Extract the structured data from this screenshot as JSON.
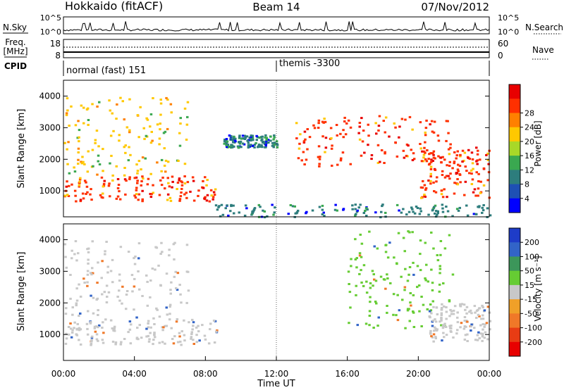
{
  "header": {
    "station": "Hokkaido (fitACF)",
    "beam": "Beam 14",
    "date": "07/Nov/2012"
  },
  "noise_panel": {
    "left_label": "N.Sky",
    "right_label": "N.Search",
    "left_ticks": [
      "10^5",
      "10^0"
    ],
    "right_ticks": [
      "10^5",
      "10^0"
    ]
  },
  "freq_panel": {
    "left_label_top": "Freq.",
    "left_label_bottom": "[MHz]",
    "left_ticks": [
      "18",
      "8"
    ],
    "right_label": "Nave",
    "right_ticks": [
      "60",
      "0"
    ]
  },
  "cpid_panel": {
    "label": "CPID",
    "modes": [
      {
        "text": "normal (fast) 151",
        "start_hour": 0
      },
      {
        "text": "themis -3300",
        "start_hour": 12
      }
    ]
  },
  "time_axis": {
    "label": "Time UT",
    "ticks": [
      "00:00",
      "04:00",
      "08:00",
      "12:00",
      "16:00",
      "20:00",
      "00:00"
    ],
    "hours": [
      0,
      4,
      8,
      12,
      16,
      20,
      24
    ],
    "range_hours": [
      0,
      24
    ]
  },
  "chart_data": [
    {
      "type": "heatmap",
      "quantity": "power",
      "ylabel": "Slant Range [km]",
      "ylim": [
        180,
        4500
      ],
      "yticks": [
        1000,
        2000,
        3000,
        4000
      ],
      "xlim_hours": [
        0,
        24
      ],
      "colorbar": {
        "label": "Power [dB]",
        "ticks": [
          "4",
          "8",
          "12",
          "16",
          "20",
          "24",
          "28"
        ],
        "colors": [
          "#0000ff",
          "#1e50b4",
          "#2d7d7d",
          "#3aa850",
          "#a8d828",
          "#ffc800",
          "#ff8000",
          "#ff3000",
          "#e80000"
        ]
      },
      "features": [
        {
          "desc": "dense echo band",
          "hours": [
            0,
            8.6
          ],
          "range_km": [
            700,
            1500
          ],
          "power_db": 26
        },
        {
          "desc": "diffuse echo region",
          "hours": [
            0,
            7
          ],
          "range_km": [
            1500,
            4000
          ],
          "power_db": 18
        },
        {
          "desc": "scattered echoes",
          "hours": [
            9,
            12
          ],
          "range_km": [
            2400,
            2800
          ],
          "power_db": 6
        },
        {
          "desc": "near-range ground echoes",
          "hours": [
            8.5,
            24
          ],
          "range_km": [
            200,
            600
          ],
          "power_db": 8
        },
        {
          "desc": "strong descending band",
          "hours": [
            13,
            22
          ],
          "range_km": [
            1800,
            3400
          ],
          "power_db": 26
        },
        {
          "desc": "strong evening band",
          "hours": [
            20,
            24
          ],
          "range_km": [
            800,
            2400
          ],
          "power_db": 26
        }
      ]
    },
    {
      "type": "heatmap",
      "quantity": "velocity",
      "ylabel": "Slant Range [km]",
      "ylim": [
        180,
        4500
      ],
      "yticks": [
        1000,
        2000,
        3000,
        4000
      ],
      "xlim_hours": [
        0,
        24
      ],
      "colorbar": {
        "label": "Velocity [m s⁻¹]",
        "ticks": [
          "200",
          "100",
          "50",
          "15",
          "-15",
          "-50",
          "-100",
          "-200"
        ],
        "colors": [
          "#1e3cc8",
          "#3264c8",
          "#3c965a",
          "#66cc33",
          "#c8c8c8",
          "#f0a028",
          "#f07828",
          "#e83c14",
          "#e80000"
        ]
      },
      "features": [
        {
          "desc": "ground scatter band",
          "hours": [
            0,
            8.6
          ],
          "range_km": [
            700,
            1500
          ],
          "velocity": 0
        },
        {
          "desc": "mixed irregularity region",
          "hours": [
            0,
            7
          ],
          "range_km": [
            1500,
            4000
          ],
          "velocity": 0
        },
        {
          "desc": "positive velocity band",
          "hours": [
            16,
            22
          ],
          "range_km": [
            1200,
            4300
          ],
          "velocity": 30
        },
        {
          "desc": "ground scatter evening",
          "hours": [
            20.5,
            24
          ],
          "range_km": [
            800,
            2000
          ],
          "velocity": 0
        }
      ]
    }
  ]
}
